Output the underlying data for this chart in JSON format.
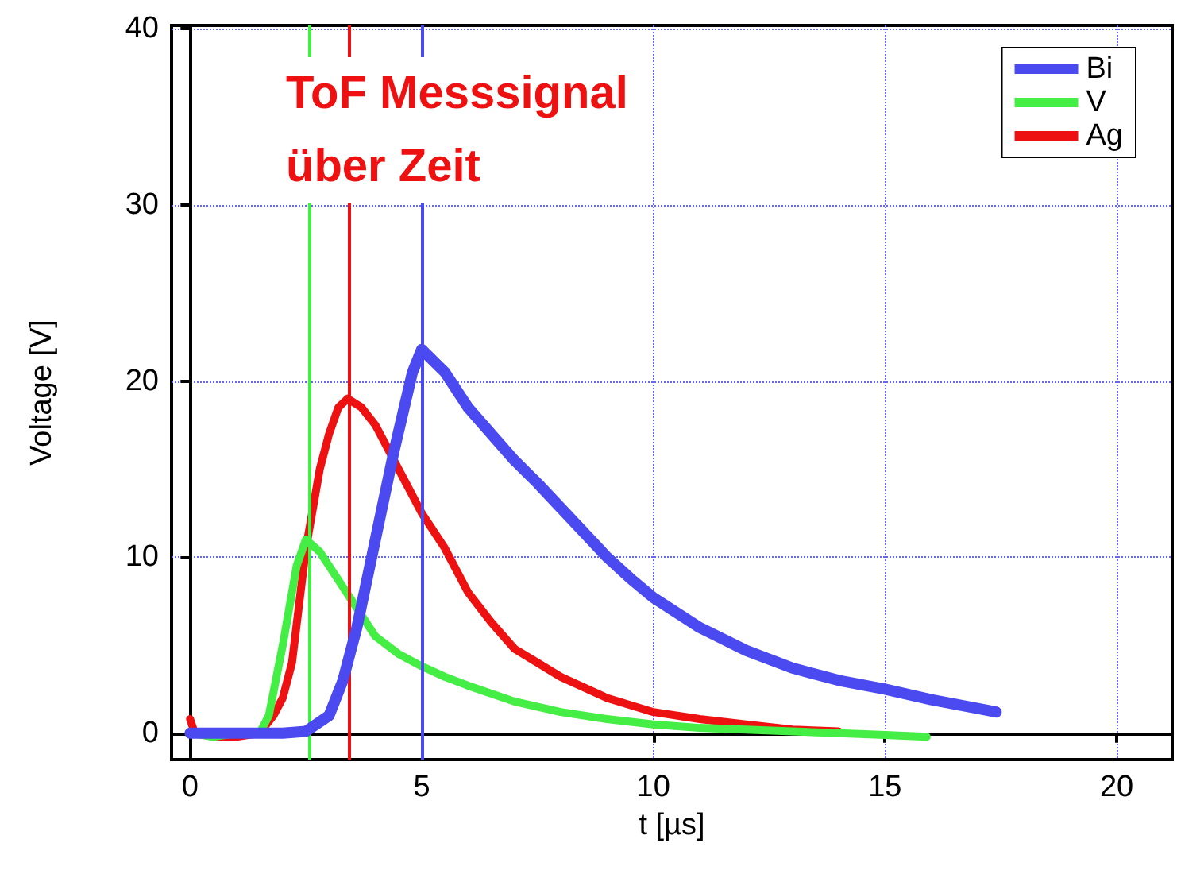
{
  "chart_data": {
    "type": "line",
    "xlabel": "t [µs]",
    "ylabel": "Voltage [V]",
    "annotations": [
      "ToF Messsignal\nüber Zeit"
    ],
    "xlim": [
      -0.4,
      21.2
    ],
    "xticks": [
      0,
      5,
      10,
      15,
      20
    ],
    "ylim": [
      -1.5,
      40.2
    ],
    "yticks": [
      0,
      10,
      20,
      30,
      40
    ],
    "grid": true,
    "legend": "top right",
    "marker": "none",
    "line_style": "solid",
    "series": [
      {
        "name": "Bi",
        "color": "#4a4af0",
        "x": [
          0,
          1,
          2,
          2.5,
          3,
          3.3,
          3.6,
          4,
          4.4,
          4.8,
          5,
          5.5,
          6,
          6.5,
          7,
          7.5,
          8,
          8.5,
          9,
          9.5,
          10,
          11,
          12,
          13,
          14,
          15,
          16,
          17,
          17.4
        ],
        "values": [
          0,
          0,
          0,
          0.1,
          1,
          3,
          6,
          11,
          16,
          20.5,
          21.8,
          20.5,
          18.5,
          17,
          15.5,
          14.2,
          12.8,
          11.4,
          10,
          8.8,
          7.7,
          6,
          4.7,
          3.7,
          3,
          2.5,
          1.9,
          1.4,
          1.2
        ]
      },
      {
        "name": "V",
        "color": "#44ee44",
        "x": [
          0,
          0.5,
          1,
          1.5,
          1.7,
          2,
          2.3,
          2.5,
          2.8,
          3,
          3.5,
          4,
          4.5,
          5,
          5.5,
          6,
          7,
          8,
          9,
          10,
          11,
          12,
          13,
          14,
          15,
          15.9
        ],
        "values": [
          0,
          -0.2,
          0,
          0,
          1,
          5,
          9.5,
          11,
          10.3,
          9.5,
          7.5,
          5.5,
          4.5,
          3.8,
          3.2,
          2.7,
          1.8,
          1.2,
          0.8,
          0.5,
          0.3,
          0.2,
          0.1,
          0,
          -0.1,
          -0.2
        ]
      },
      {
        "name": "Ag",
        "color": "#ee1111",
        "x": [
          0,
          0.1,
          0.5,
          1,
          1.5,
          1.8,
          2,
          2.2,
          2.5,
          2.8,
          3,
          3.2,
          3.4,
          3.7,
          4,
          4.5,
          5,
          5.5,
          6,
          6.5,
          7,
          7.5,
          8,
          9,
          10,
          11,
          12,
          13,
          14
        ],
        "values": [
          0.8,
          0,
          -0.2,
          -0.2,
          0,
          1,
          2,
          4,
          10.5,
          15,
          17,
          18.5,
          19,
          18.5,
          17.5,
          15,
          12.5,
          10.5,
          8,
          6.3,
          4.8,
          4,
          3.2,
          2,
          1.2,
          0.8,
          0.5,
          0.2,
          0.1
        ]
      }
    ],
    "ref_lines": [
      {
        "axis": "x",
        "value": 2.57,
        "color": "#44ee44"
      },
      {
        "axis": "x",
        "value": 3.42,
        "color": "#ee1111"
      },
      {
        "axis": "x",
        "value": 5.0,
        "color": "#4a4af0"
      }
    ]
  }
}
